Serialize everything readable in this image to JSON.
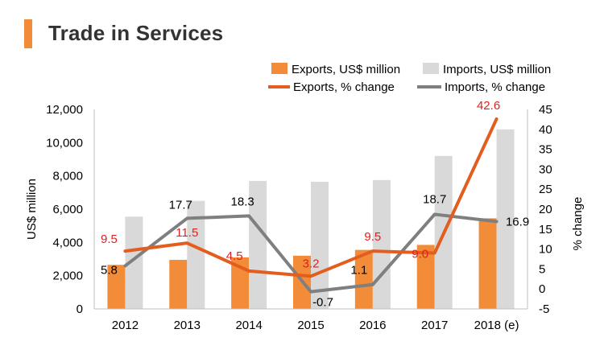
{
  "header": {
    "title": "Trade in Services"
  },
  "colors": {
    "accent": "#f28c38",
    "exports_bar": "#f28c38",
    "imports_bar": "#d9d9d9",
    "exports_line": "#e35e1e",
    "imports_line": "#7f7f7f",
    "exports_label": "#e02020",
    "imports_label": "#000000"
  },
  "chart_data": {
    "type": "bar",
    "title": "Trade in Services",
    "categories": [
      "2012",
      "2013",
      "2014",
      "2015",
      "2016",
      "2017",
      "2018 (e)"
    ],
    "ylabel": "US$ million",
    "y2label": "% change",
    "ylim": [
      0,
      12000
    ],
    "y2lim": [
      -5,
      45
    ],
    "y_ticks": [
      "0",
      "2,000",
      "4,000",
      "6,000",
      "8,000",
      "10,000",
      "12,000"
    ],
    "y2_ticks": [
      "-5",
      "0",
      "5",
      "10",
      "15",
      "20",
      "25",
      "30",
      "35",
      "40",
      "45"
    ],
    "series": [
      {
        "name": "Exports, US$ million",
        "kind": "bar",
        "axis": "left",
        "values": [
          2650,
          2950,
          3100,
          3200,
          3550,
          3850,
          5450
        ]
      },
      {
        "name": "Imports, US$ million",
        "kind": "bar",
        "axis": "left",
        "values": [
          5550,
          6500,
          7700,
          7650,
          7750,
          9200,
          10800
        ]
      },
      {
        "name": "Exports, % change",
        "kind": "line",
        "axis": "right",
        "values": [
          9.5,
          11.5,
          4.5,
          3.2,
          9.5,
          9.0,
          42.6
        ],
        "labels": [
          "9.5",
          "11.5",
          "4.5",
          "3.2",
          "9.5",
          "9.0",
          "42.6"
        ]
      },
      {
        "name": "Imports, % change",
        "kind": "line",
        "axis": "right",
        "values": [
          5.8,
          17.7,
          18.3,
          -0.7,
          1.1,
          18.7,
          16.9
        ],
        "labels": [
          "5.8",
          "17.7",
          "18.3",
          "-0.7",
          "1.1",
          "18.7",
          "16.9"
        ]
      }
    ],
    "legend_position": "top-right",
    "grid": false
  }
}
